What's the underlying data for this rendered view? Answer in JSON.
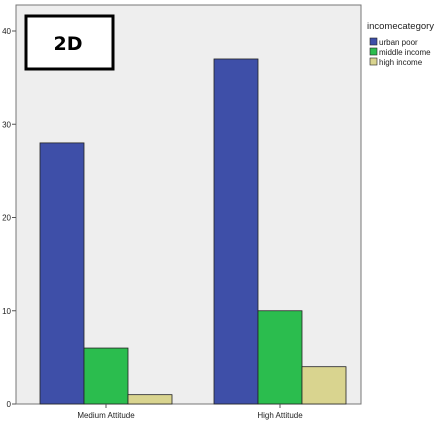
{
  "panel_label": "2D",
  "chart_data": {
    "type": "bar",
    "categories": [
      "Medium Attitude",
      "High Attitude"
    ],
    "series": [
      {
        "name": "urban poor",
        "values": [
          28,
          37
        ],
        "color": "#3e4fa8"
      },
      {
        "name": "middle income",
        "values": [
          6,
          10
        ],
        "color": "#2bbd4e"
      },
      {
        "name": "high income",
        "values": [
          1,
          4
        ],
        "color": "#d9d48f"
      }
    ],
    "legend_title": "incomecategory",
    "legend_position": "top-right",
    "xlabel": "",
    "ylabel": "",
    "ylim": [
      0,
      40
    ],
    "yticks": [
      0,
      10,
      20,
      30,
      40
    ],
    "grid": false,
    "plot_background": "#eeeeee"
  }
}
